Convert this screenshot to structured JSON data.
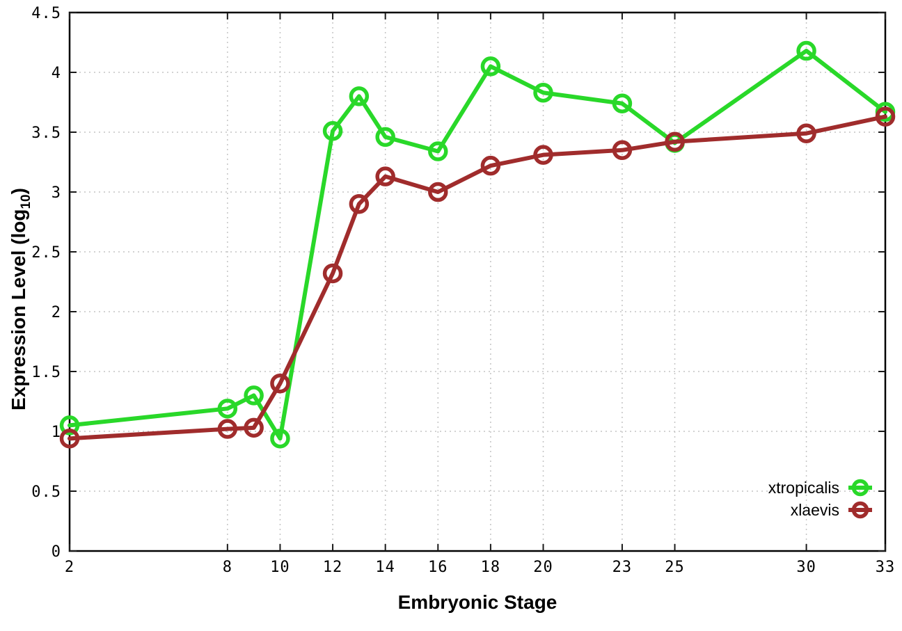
{
  "figure": {
    "background_color": "#ffffff",
    "border_color": "#000000",
    "grid_color": "#c4c4c4",
    "tick_color": "#1a1a1a",
    "text_color": "#000000"
  },
  "chart_data": {
    "type": "line",
    "title": "",
    "xlabel": "Embryonic Stage",
    "ylabel": "Expression Level (log10)",
    "ylabel_parts": {
      "prefix": "Expression Level (log",
      "subscript": "10",
      "suffix": ")"
    },
    "x": [
      2,
      8,
      9,
      10,
      12,
      13,
      14,
      16,
      18,
      20,
      23,
      25,
      30,
      33
    ],
    "xlim": [
      2,
      33
    ],
    "ylim": [
      0,
      4.5
    ],
    "xtick_values": [
      2,
      8,
      10,
      12,
      14,
      16,
      18,
      20,
      23,
      25,
      30,
      33
    ],
    "xtick_labels": [
      "2",
      "8",
      "10",
      "12",
      "14",
      "16",
      "18",
      "20",
      "23",
      "25",
      "30",
      "33"
    ],
    "ytick_values": [
      0,
      0.5,
      1,
      1.5,
      2,
      2.5,
      3,
      3.5,
      4,
      4.5
    ],
    "ytick_labels": [
      "0",
      "0.5",
      "1",
      "1.5",
      "2",
      "2.5",
      "3",
      "3.5",
      "4",
      "4.5"
    ],
    "grid": "dotted",
    "legend_position": "inside-bottom-right",
    "series": [
      {
        "name": "xtropicalis",
        "color": "#29d829",
        "marker": "open-circle",
        "values": [
          1.05,
          1.19,
          1.3,
          0.94,
          3.51,
          3.8,
          3.46,
          3.34,
          4.05,
          3.83,
          3.74,
          3.41,
          4.18,
          3.67
        ]
      },
      {
        "name": "xlaevis",
        "color": "#a02c2c",
        "marker": "open-circle",
        "values": [
          0.94,
          1.02,
          1.03,
          1.4,
          2.32,
          2.9,
          3.13,
          3.0,
          3.22,
          3.31,
          3.35,
          3.42,
          3.49,
          3.63
        ]
      }
    ]
  }
}
